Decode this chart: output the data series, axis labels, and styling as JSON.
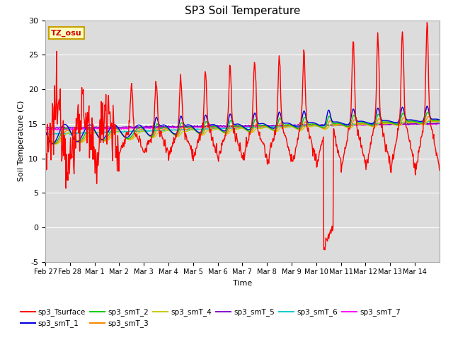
{
  "title": "SP3 Soil Temperature",
  "xlabel": "Time",
  "ylabel": "Soil Temperature (C)",
  "ylim": [
    -5,
    30
  ],
  "background_color": "#dcdcdc",
  "fig_bg": "#ffffff",
  "annotation_text": "TZ_osu",
  "annotation_bg": "#ffffc0",
  "annotation_border": "#c8a000",
  "annotation_text_color": "#cc0000",
  "series_colors": {
    "sp3_Tsurface": "#ff0000",
    "sp3_smT_1": "#0000dd",
    "sp3_smT_2": "#00cc00",
    "sp3_smT_3": "#ff8800",
    "sp3_smT_4": "#cccc00",
    "sp3_smT_5": "#8800cc",
    "sp3_smT_6": "#00cccc",
    "sp3_smT_7": "#ff00ff"
  },
  "xtick_labels": [
    "Feb 27",
    "Feb 28",
    "Mar 1",
    "Mar 2",
    "Mar 3",
    "Mar 4",
    "Mar 5",
    "Mar 6",
    "Mar 7",
    "Mar 8",
    "Mar 9",
    "Mar 10",
    "Mar 11",
    "Mar 12",
    "Mar 13",
    "Mar 14"
  ],
  "ytick_labels": [
    -5,
    0,
    5,
    10,
    15,
    20,
    25,
    30
  ]
}
